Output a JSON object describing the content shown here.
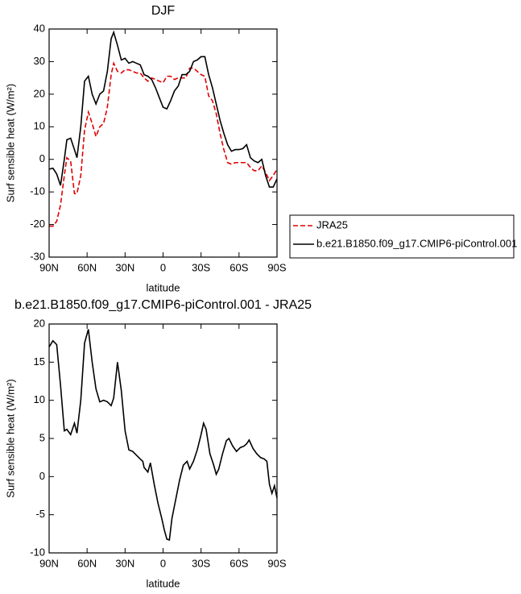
{
  "chart_data": [
    {
      "type": "line",
      "title": "DJF",
      "xlabel": "latitude",
      "ylabel": "Surf sensible heat (W/m²)",
      "x": [
        90,
        87,
        84,
        81,
        78,
        76,
        73,
        70,
        68,
        65,
        62,
        59,
        56,
        53,
        50,
        47,
        44,
        41,
        39,
        36,
        33,
        30,
        27,
        24,
        21,
        18,
        15,
        12,
        9,
        6,
        3,
        0,
        -3,
        -6,
        -9,
        -12,
        -15,
        -18,
        -21,
        -24,
        -27,
        -30,
        -33,
        -36,
        -39,
        -42,
        -45,
        -48,
        -51,
        -54,
        -57,
        -60,
        -63,
        -66,
        -69,
        -72,
        -75,
        -78,
        -81,
        -84,
        -87,
        -90
      ],
      "series": [
        {
          "name": "JRA25",
          "color": "#e00000",
          "dash": true,
          "values": [
            -20.5,
            -20.5,
            -19,
            -14,
            -5,
            0.5,
            -0.5,
            -10.5,
            -10.5,
            -5,
            9,
            14.5,
            11,
            7,
            10,
            11,
            16,
            26,
            29.5,
            27,
            26.5,
            27.5,
            27.5,
            27,
            26.5,
            26.5,
            25,
            24,
            25,
            24.5,
            24,
            23.5,
            25.5,
            25.5,
            24.5,
            25,
            25,
            25,
            28,
            28,
            27,
            26,
            25.5,
            19.5,
            18,
            14,
            8,
            3,
            -1,
            -1.5,
            -1,
            -1,
            -1,
            -1,
            -2.5,
            -3.5,
            -3.5,
            -2,
            -4,
            -6.5,
            -5,
            -3
          ]
        },
        {
          "name": "b.e21.B1850.f09_g17.CMIP6-piControl.001",
          "color": "#000000",
          "dash": false,
          "values": [
            -3,
            -2.7,
            -4.5,
            -8,
            0,
            6,
            6.5,
            3,
            0.5,
            10,
            24,
            25.5,
            20,
            17,
            20,
            21,
            27,
            37,
            39,
            35,
            30.5,
            31,
            29.5,
            30,
            29.5,
            29,
            26,
            25.5,
            24.5,
            22,
            19,
            16,
            15.5,
            18,
            21,
            22.5,
            26,
            26,
            27,
            30,
            30.5,
            31.5,
            31.5,
            26,
            22,
            17,
            12,
            8,
            4.5,
            2.5,
            3,
            3,
            3.3,
            4.5,
            0.5,
            -0.5,
            -1,
            0,
            -5,
            -8.5,
            -8.5,
            -6
          ]
        }
      ],
      "xlim": [
        90,
        -90
      ],
      "xticks": [
        {
          "value": 90,
          "label": "90N"
        },
        {
          "value": 60,
          "label": "60N"
        },
        {
          "value": 30,
          "label": "30N"
        },
        0,
        {
          "value": -30,
          "label": "30S"
        },
        {
          "value": -60,
          "label": "60S"
        },
        {
          "value": -90,
          "label": "90S"
        }
      ],
      "ylim": [
        -30,
        40
      ],
      "yticks": [
        -30,
        -20,
        -10,
        0,
        10,
        20,
        30,
        40
      ],
      "legend": "outside-right"
    },
    {
      "type": "line",
      "title": "b.e21.B1850.f09_g17.CMIP6-piControl.001 - JRA25",
      "xlabel": "latitude",
      "ylabel": "Surf sensible heat (W/m²)",
      "x": [
        90,
        87,
        84,
        81,
        78,
        76,
        73,
        70,
        68,
        65,
        62,
        59,
        56,
        53,
        50,
        47,
        44,
        41,
        39,
        36,
        33,
        30,
        27,
        24,
        21,
        18,
        16,
        15,
        12,
        10,
        7,
        4,
        1,
        -1,
        -3,
        -5,
        -7,
        -10,
        -13,
        -16,
        -19,
        -21,
        -24,
        -27,
        -30,
        -32,
        -34,
        -37,
        -40,
        -42,
        -44,
        -47,
        -50,
        -52,
        -55,
        -58,
        -61,
        -64,
        -66,
        -68,
        -71,
        -74,
        -77,
        -80,
        -82,
        -84,
        -86,
        -88,
        -90
      ],
      "series": [
        {
          "color": "#000000",
          "dash": false,
          "values": [
            17,
            17.8,
            17.3,
            12,
            6,
            6.2,
            5.5,
            7,
            5.7,
            10,
            17.5,
            19.3,
            15,
            11.5,
            9.8,
            10,
            9.8,
            9.3,
            10.3,
            15,
            11.3,
            6,
            3.5,
            3.3,
            2.8,
            2.3,
            2,
            1.2,
            0.6,
            1.8,
            -1,
            -3.5,
            -5.5,
            -7,
            -8.2,
            -8.3,
            -5.5,
            -3,
            -0.5,
            1.5,
            2,
            1,
            2,
            3.5,
            5.5,
            7,
            6.2,
            3,
            1.5,
            0.3,
            1,
            3,
            4.7,
            5,
            4,
            3.3,
            3.8,
            4,
            4.3,
            4.8,
            3.7,
            3,
            2.5,
            2.3,
            2,
            -1,
            -2.2,
            -1.2,
            -2.8
          ]
        }
      ],
      "xlim": [
        90,
        -90
      ],
      "xticks": [
        {
          "value": 90,
          "label": "90N"
        },
        {
          "value": 60,
          "label": "60N"
        },
        {
          "value": 30,
          "label": "30N"
        },
        0,
        {
          "value": -30,
          "label": "30S"
        },
        {
          "value": -60,
          "label": "60S"
        },
        {
          "value": -90,
          "label": "90S"
        }
      ],
      "ylim": [
        -10,
        20
      ],
      "yticks": [
        -10,
        -5,
        0,
        5,
        10,
        15,
        20
      ]
    }
  ]
}
